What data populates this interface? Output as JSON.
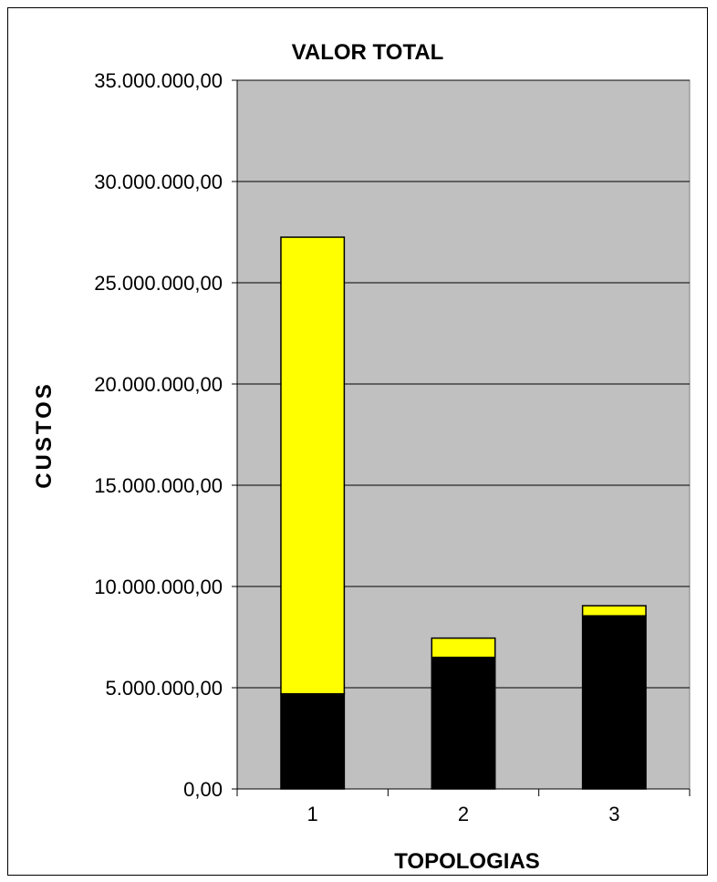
{
  "chart_data": {
    "type": "bar",
    "stacked": true,
    "title": "VALOR TOTAL",
    "xlabel": "TOPOLOGIAS",
    "ylabel": "CUSTOS",
    "categories": [
      "1",
      "2",
      "3"
    ],
    "series": [
      {
        "values": [
          4700000,
          6500000,
          8550000
        ],
        "color": "#000000"
      },
      {
        "values": [
          22550000,
          950000,
          500000
        ],
        "color": "#ffff00"
      }
    ],
    "ylim": [
      0,
      35000000
    ],
    "yticks": [
      0,
      5000000,
      10000000,
      15000000,
      20000000,
      25000000,
      30000000,
      35000000
    ],
    "ytick_labels": [
      "0,00",
      "5.000.000,00",
      "10.000.000,00",
      "15.000.000,00",
      "20.000.000,00",
      "25.000.000,00",
      "30.000.000,00",
      "35.000.000,00"
    ],
    "grid": true,
    "legend": "none",
    "plot_background": "#c0c0c0"
  }
}
